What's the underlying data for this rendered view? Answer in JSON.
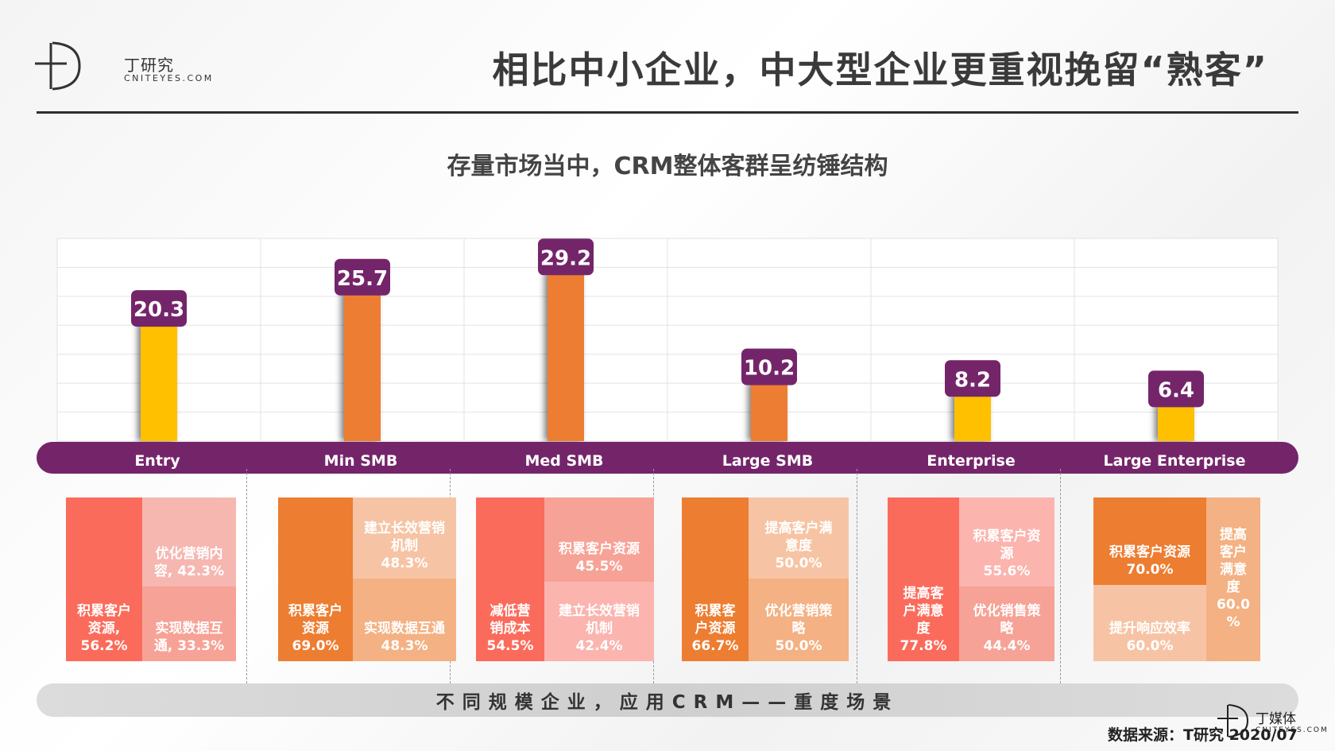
{
  "logo": {
    "cn": "丁研究",
    "en": "CNITEYES.COM"
  },
  "title": "相比中小企业，中大型企业更重视挽留“熟客”",
  "subtitle": "存量市场当中，CRM整体客群呈纺锤结构",
  "colors": {
    "purple": "#74256a",
    "orange": "#ed7d31",
    "yellow": "#ffc000",
    "red": "#fb6b5b",
    "pink": "#fbb4ae",
    "pink_light": "#f6b7b1",
    "salmon": "#f7a296",
    "peach": "#f4b183",
    "peach_light": "#f6c4a4"
  },
  "chart_data": {
    "type": "bar",
    "categories": [
      "Entry",
      "Min SMB",
      "Med SMB",
      "Large SMB",
      "Enterprise",
      "Large Enterprise"
    ],
    "values": [
      20.3,
      25.7,
      29.2,
      10.2,
      8.2,
      6.4
    ],
    "value_labels": [
      "20.3",
      "25.7",
      "29.2",
      "10.2",
      "8.2",
      "6.4"
    ],
    "bar_colors": [
      "#ffc000",
      "#ed7d31",
      "#ed7d31",
      "#ed7d31",
      "#ffc000",
      "#ffc000"
    ],
    "grid": true,
    "ylim": [
      0,
      35
    ]
  },
  "scenarios": [
    {
      "cells": [
        {
          "text": "积累客户\n资源,\n56.2%",
          "color": "#fb6b5b",
          "value": 56.2
        },
        {
          "text": "优化营销内\n容, 42.3%",
          "color": "#f6b7b1",
          "value": 42.3
        },
        {
          "text": "实现数据互\n通, 33.3%",
          "color": "#f7a296",
          "value": 33.3
        }
      ]
    },
    {
      "cells": [
        {
          "text": "积累客户\n资源\n69.0%",
          "color": "#ed7d31",
          "value": 69.0
        },
        {
          "text": "建立长效营销\n机制\n48.3%",
          "color": "#f6c4a4",
          "value": 48.3
        },
        {
          "text": "实现数据互通\n48.3%",
          "color": "#f4b183",
          "value": 48.3
        }
      ]
    },
    {
      "cells": [
        {
          "text": "减低营\n销成本\n54.5%",
          "color": "#fb6b5b",
          "value": 54.5
        },
        {
          "text": "积累客户资源\n45.5%",
          "color": "#f7a296",
          "value": 45.5
        },
        {
          "text": "建立长效营销\n机制\n42.4%",
          "color": "#fbb4ae",
          "value": 42.4
        }
      ]
    },
    {
      "cells": [
        {
          "text": "积累客\n户资源\n66.7%",
          "color": "#ed7d31",
          "value": 66.7
        },
        {
          "text": "提高客户满\n意度\n50.0%",
          "color": "#f6c4a4",
          "value": 50.0
        },
        {
          "text": "优化营销策\n略\n50.0%",
          "color": "#f4b183",
          "value": 50.0
        }
      ]
    },
    {
      "cells": [
        {
          "text": "提高客\n户满意\n度\n77.8%",
          "color": "#fb6b5b",
          "value": 77.8
        },
        {
          "text": "积累客户资\n源\n55.6%",
          "color": "#fbb4ae",
          "value": 55.6
        },
        {
          "text": "优化销售策\n略\n44.4%",
          "color": "#f7a296",
          "value": 44.4
        }
      ]
    },
    {
      "cells": [
        {
          "text": "积累客户资源\n70.0%",
          "color": "#ed7d31",
          "value": 70.0
        },
        {
          "text": "提升响应效率\n60.0%",
          "color": "#f6c4a4",
          "value": 60.0
        },
        {
          "text": "提高\n客户\n满意\n度\n60.0\n%",
          "color": "#f4b183",
          "value": 60.0
        }
      ]
    }
  ],
  "bottom_label": "不同规模企业，应用CRM——重度场景",
  "source": "数据来源：T研究 2020/07",
  "mini_logo": {
    "cn": "丁媒体",
    "en": "CNITEYES.COM"
  }
}
